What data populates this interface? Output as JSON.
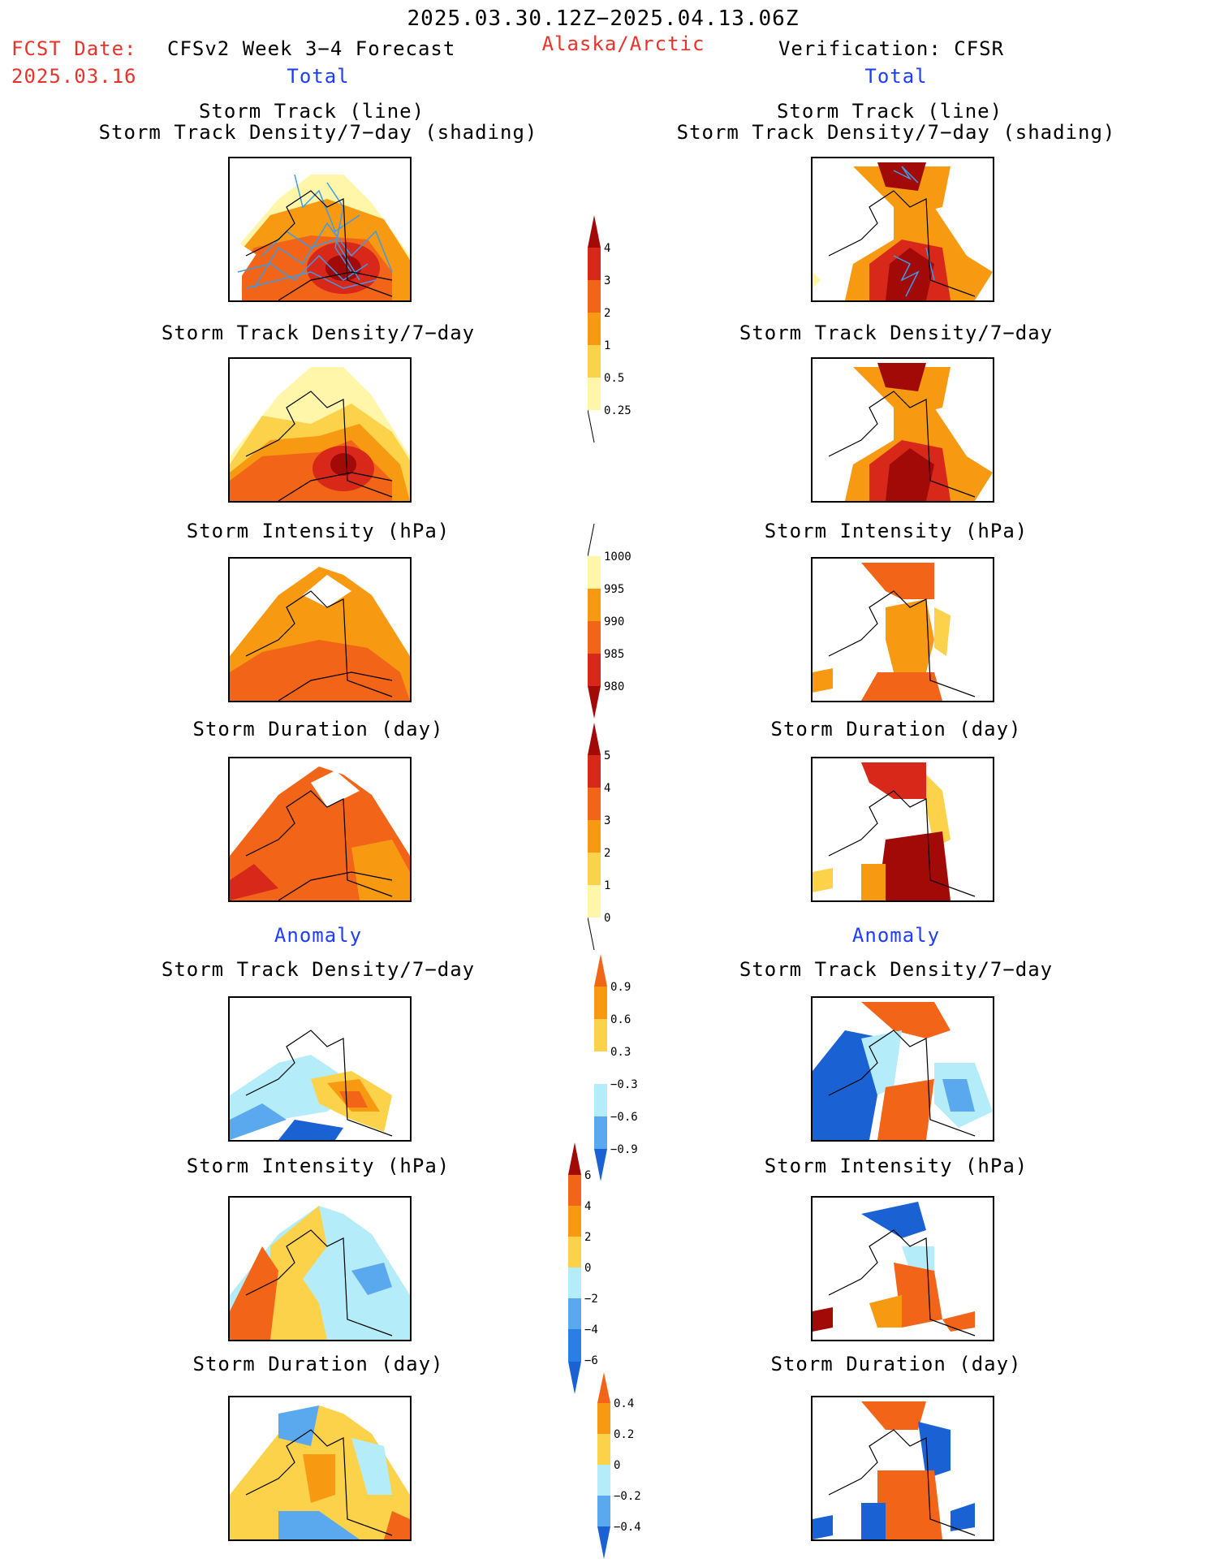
{
  "header": {
    "period": "2025.03.30.12Z−2025.04.13.06Z",
    "fcst_label": "FCST Date:",
    "fcst_date": "2025.03.16",
    "model": "CFSv2 Week 3−4 Forecast",
    "region": "Alaska/Arctic",
    "verification": "Verification: CFSR"
  },
  "sections": {
    "total": "Total",
    "anomaly": "Anomaly"
  },
  "titles": {
    "track_line": "Storm Track (line)",
    "track_density_shading": "Storm Track Density/7−day (shading)",
    "track_density": "Storm Track Density/7−day",
    "intensity": "Storm Intensity (hPa)",
    "duration": "Storm Duration (day)"
  },
  "colorbars": {
    "density": [
      "4",
      "3",
      "2",
      "1",
      "0.5",
      "0.25"
    ],
    "intensity": [
      "1000",
      "995",
      "990",
      "985",
      "980"
    ],
    "duration": [
      "5",
      "4",
      "3",
      "2",
      "1",
      "0"
    ],
    "density_anom": [
      "0.9",
      "0.6",
      "0.3",
      "−0.3",
      "−0.6",
      "−0.9"
    ],
    "intensity_anom": [
      "6",
      "4",
      "2",
      "0",
      "−2",
      "−4",
      "−6"
    ],
    "duration_anom": [
      "0.4",
      "0.2",
      "0",
      "−0.2",
      "−0.4"
    ]
  },
  "colors": {
    "pale_yellow": "#fff6aa",
    "yellow": "#fbd24a",
    "orange": "#f79a12",
    "dark_orange": "#f26418",
    "red": "#d8281a",
    "dark_red": "#a20a08",
    "light_blue": "#b5ecfa",
    "mid_blue": "#5aa8ee",
    "blue": "#1a62d4",
    "track_blue": "#3d9be9"
  }
}
